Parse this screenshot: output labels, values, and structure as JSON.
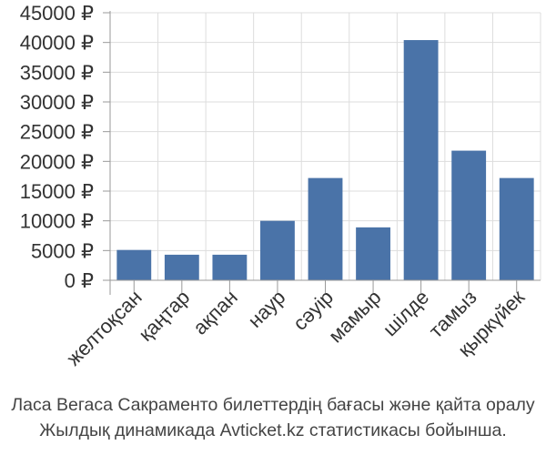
{
  "chart_data": {
    "type": "bar",
    "categories": [
      "желтоқсан",
      "қаңтар",
      "ақпан",
      "наур",
      "сәуір",
      "мамыр",
      "шілде",
      "тамыз",
      "қыркүйек"
    ],
    "values": [
      5100,
      4300,
      4300,
      10000,
      17200,
      8900,
      40400,
      21800,
      17200
    ],
    "ylim": [
      0,
      45000
    ],
    "yticks": [
      0,
      5000,
      10000,
      15000,
      20000,
      25000,
      30000,
      35000,
      40000,
      45000
    ],
    "ytick_labels": [
      "0 ₽",
      "5000 ₽",
      "10000 ₽",
      "15000 ₽",
      "20000 ₽",
      "25000 ₽",
      "30000 ₽",
      "35000 ₽",
      "40000 ₽",
      "45000 ₽"
    ],
    "grid": true,
    "bar_color": "#4a73a8",
    "grid_color": "#dddddd",
    "caption_line1": "Ласа Вегаса Сакраменто билеттердің бағасы және қайта оралу",
    "caption_line2": "Жылдық динамикада Avticket.kz статистикасы бойынша."
  }
}
